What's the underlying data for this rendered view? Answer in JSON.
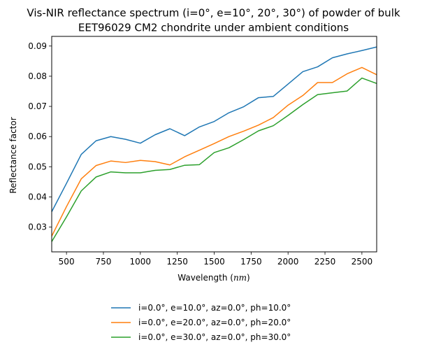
{
  "chart_data": {
    "type": "line",
    "title_lines": [
      "Vis-NIR reflectance spectrum (i=0°, e=10°, 20°, 30°) of powder of bulk",
      "EET96029 CM2 chondrite under ambient conditions"
    ],
    "xlabel": "Wavelength (nm)",
    "ylabel": "Reflectance factor",
    "xlim": [
      400,
      2600
    ],
    "ylim": [
      0.0218,
      0.0932
    ],
    "xticks": [
      500,
      750,
      1000,
      1250,
      1500,
      1750,
      2000,
      2250,
      2500
    ],
    "yticks": [
      0.03,
      0.04,
      0.05,
      0.06,
      0.07,
      0.08,
      0.09
    ],
    "grid": false,
    "legend_position": "below plot",
    "series": [
      {
        "name": "i=0.0°, e=10.0°, az=0.0°, ph=10.0°",
        "color": "#1f77b4",
        "x": [
          400,
          500,
          600,
          700,
          800,
          900,
          1000,
          1100,
          1200,
          1300,
          1400,
          1500,
          1600,
          1700,
          1800,
          1900,
          2000,
          2100,
          2200,
          2300,
          2400,
          2500,
          2600
        ],
        "y": [
          0.0351,
          0.0445,
          0.0541,
          0.0586,
          0.06,
          0.0591,
          0.0578,
          0.0606,
          0.0626,
          0.0603,
          0.0632,
          0.065,
          0.0679,
          0.0699,
          0.0729,
          0.0733,
          0.0774,
          0.0815,
          0.0831,
          0.0861,
          0.0874,
          0.0885,
          0.0897
        ]
      },
      {
        "name": "i=0.0°, e=20.0°, az=0.0°, ph=20.0°",
        "color": "#ff7f0e",
        "x": [
          400,
          500,
          600,
          700,
          800,
          900,
          1000,
          1100,
          1200,
          1300,
          1400,
          1500,
          1600,
          1700,
          1800,
          1900,
          2000,
          2100,
          2200,
          2300,
          2400,
          2500,
          2600
        ],
        "y": [
          0.027,
          0.0368,
          0.046,
          0.0504,
          0.0519,
          0.0514,
          0.0521,
          0.0517,
          0.0506,
          0.0533,
          0.0555,
          0.0577,
          0.06,
          0.0618,
          0.0638,
          0.0663,
          0.0704,
          0.0736,
          0.0779,
          0.0779,
          0.0808,
          0.0829,
          0.0805
        ]
      },
      {
        "name": "i=0.0°, e=30.0°, az=0.0°, ph=30.0°",
        "color": "#2ca02c",
        "x": [
          400,
          500,
          600,
          700,
          800,
          900,
          1000,
          1100,
          1200,
          1300,
          1400,
          1500,
          1600,
          1700,
          1800,
          1900,
          2000,
          2100,
          2200,
          2300,
          2400,
          2500,
          2600
        ],
        "y": [
          0.0252,
          0.0334,
          0.042,
          0.0466,
          0.0483,
          0.048,
          0.048,
          0.0488,
          0.0491,
          0.0505,
          0.0507,
          0.0547,
          0.0563,
          0.059,
          0.0619,
          0.0636,
          0.067,
          0.0706,
          0.0739,
          0.0745,
          0.0751,
          0.0794,
          0.0776
        ]
      }
    ]
  }
}
